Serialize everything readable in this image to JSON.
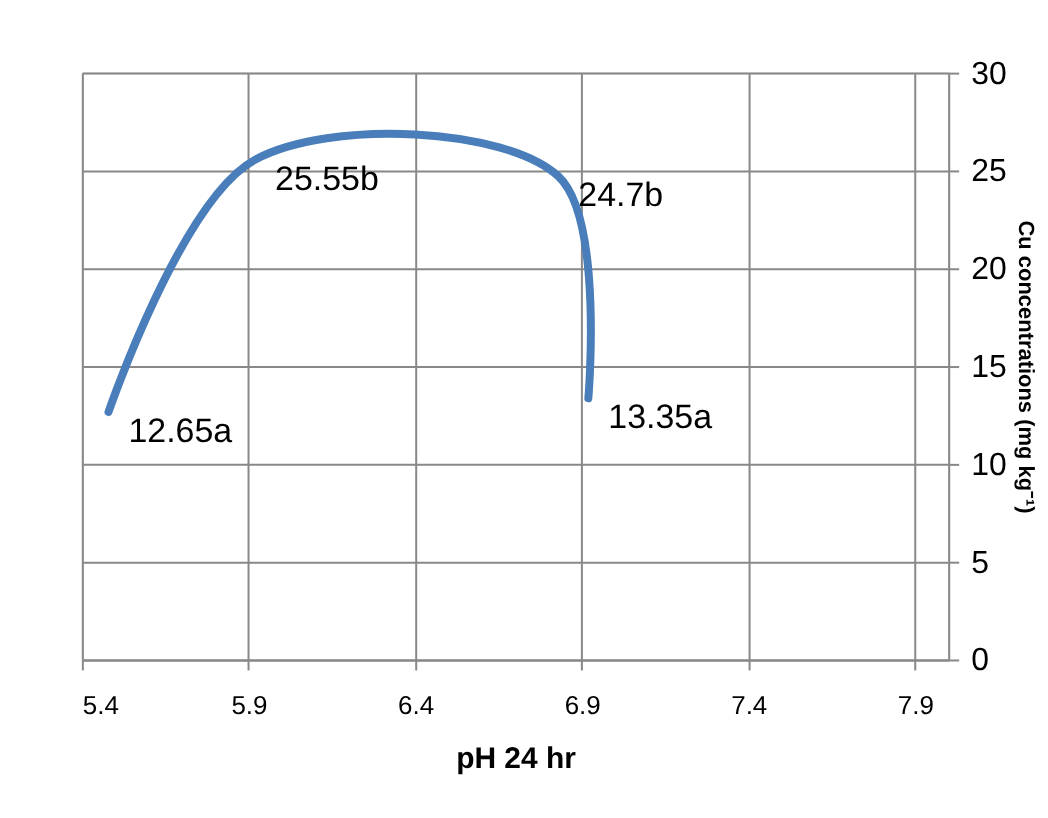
{
  "chart_data": {
    "type": "line",
    "xlabel": "pH 24 hr",
    "ylabel": "Cu concentrations (mg kg⁻¹)",
    "x": [
      5.48,
      5.92,
      6.83,
      6.92
    ],
    "series": [
      {
        "color": "#4a7ebb",
        "values": [
          12.65,
          25.55,
          24.7,
          13.35
        ]
      }
    ],
    "xlim": [
      5.4,
      8.0
    ],
    "xticks": [
      5.4,
      5.9,
      6.4,
      6.9,
      7.4,
      7.9
    ],
    "ylim": [
      0,
      30
    ],
    "yticks": [
      0,
      5,
      10,
      15,
      20,
      25,
      30
    ],
    "grid": true,
    "marker": "none",
    "line_style": "solid",
    "annotations": [
      {
        "text": "12.65a",
        "x": 5.48,
        "y": 12.65
      },
      {
        "text": "25.55b",
        "x": 5.92,
        "y": 25.55
      },
      {
        "text": "24.7b",
        "x": 6.83,
        "y": 24.7
      },
      {
        "text": "13.35a",
        "x": 6.92,
        "y": 13.35
      }
    ]
  }
}
